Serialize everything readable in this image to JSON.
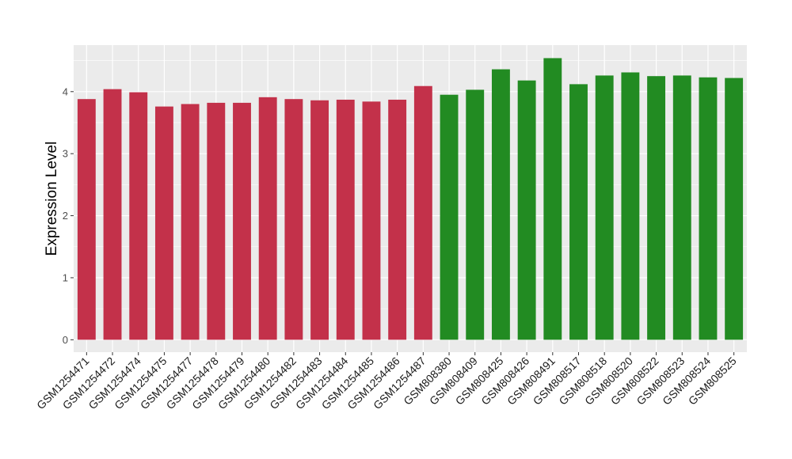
{
  "chart_data": {
    "type": "bar",
    "ylabel": "Expression Level",
    "xlabel": "",
    "ylim": [
      -0.2,
      4.75
    ],
    "yticks": [
      0,
      1,
      2,
      3,
      4
    ],
    "grid": true,
    "colors": {
      "group_a": "#C3314A",
      "group_b": "#228B22",
      "panel": "#EBEBEB",
      "grid": "#FFFFFF"
    },
    "categories": [
      "GSM1254471",
      "GSM1254472",
      "GSM1254474",
      "GSM1254475",
      "GSM1254477",
      "GSM1254478",
      "GSM1254479",
      "GSM1254480",
      "GSM1254482",
      "GSM1254483",
      "GSM1254484",
      "GSM1254485",
      "GSM1254486",
      "GSM1254487",
      "GSM808380",
      "GSM808409",
      "GSM808425",
      "GSM808426",
      "GSM808491",
      "GSM808517",
      "GSM808518",
      "GSM808520",
      "GSM808522",
      "GSM808523",
      "GSM808524",
      "GSM808525"
    ],
    "values": [
      3.88,
      4.04,
      3.99,
      3.76,
      3.8,
      3.82,
      3.82,
      3.91,
      3.88,
      3.86,
      3.87,
      3.84,
      3.87,
      4.09,
      3.95,
      4.03,
      4.36,
      4.18,
      4.54,
      4.12,
      4.26,
      4.31,
      4.25,
      4.26,
      4.23,
      4.22
    ],
    "groups": [
      "a",
      "a",
      "a",
      "a",
      "a",
      "a",
      "a",
      "a",
      "a",
      "a",
      "a",
      "a",
      "a",
      "a",
      "b",
      "b",
      "b",
      "b",
      "b",
      "b",
      "b",
      "b",
      "b",
      "b",
      "b",
      "b"
    ]
  }
}
